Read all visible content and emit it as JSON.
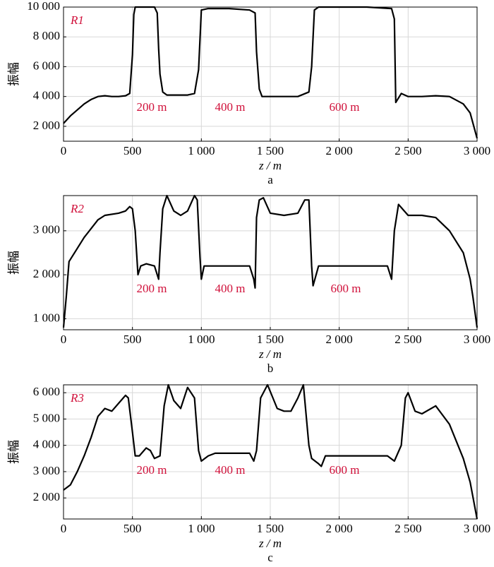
{
  "chart_data": [
    {
      "type": "line",
      "xlabel": "z / m",
      "ylabel": "振幅",
      "caption": "a",
      "annotations": [
        "200 m",
        "400 m",
        "600 m"
      ],
      "grid": true,
      "xlim": [
        0,
        3000
      ],
      "ylim": [
        1000,
        10000
      ],
      "xticks": [
        0,
        500,
        {
          "value": 1000,
          "label": "1 000"
        },
        {
          "value": 1500,
          "label": "1 500"
        },
        {
          "value": 2000,
          "label": "2 000"
        },
        {
          "value": 2500,
          "label": "2 500"
        },
        {
          "value": 3000,
          "label": "3 000"
        }
      ],
      "yticks": [
        {
          "value": 2000,
          "label": "2 000"
        },
        {
          "value": 4000,
          "label": "4 000"
        },
        {
          "value": 6000,
          "label": "6 000"
        },
        {
          "value": 8000,
          "label": "8 000"
        },
        {
          "value": 10000,
          "label": "10 000"
        }
      ],
      "x": [
        0,
        50,
        100,
        150,
        200,
        250,
        300,
        350,
        400,
        450,
        480,
        500,
        510,
        520,
        540,
        600,
        660,
        680,
        690,
        700,
        720,
        750,
        800,
        900,
        950,
        980,
        1000,
        1050,
        1200,
        1350,
        1390,
        1400,
        1420,
        1440,
        1500,
        1600,
        1700,
        1780,
        1800,
        1820,
        1850,
        2000,
        2200,
        2380,
        2400,
        2410,
        2450,
        2500,
        2600,
        2700,
        2800,
        2900,
        2950,
        3000
      ],
      "series": [
        {
          "name": "R1",
          "color": "#000000",
          "values": [
            2200,
            2700,
            3100,
            3500,
            3800,
            4000,
            4050,
            4000,
            4000,
            4050,
            4200,
            6800,
            9500,
            10000,
            10000,
            10000,
            10000,
            9600,
            7200,
            5500,
            4300,
            4100,
            4100,
            4100,
            4200,
            5800,
            9800,
            9900,
            9900,
            9800,
            9600,
            7000,
            4500,
            4000,
            4000,
            4000,
            4000,
            4300,
            6000,
            9800,
            10000,
            10000,
            10000,
            9900,
            9200,
            3600,
            4200,
            4000,
            4000,
            4050,
            4000,
            3500,
            2900,
            1200
          ]
        }
      ]
    },
    {
      "type": "line",
      "xlabel": "z / m",
      "ylabel": "振幅",
      "caption": "b",
      "annotations": [
        "200 m",
        "400 m",
        "600 m"
      ],
      "grid": true,
      "xlim": [
        0,
        3000
      ],
      "ylim": [
        750,
        3800
      ],
      "xticks": [
        0,
        500,
        {
          "value": 1000,
          "label": "1 000"
        },
        {
          "value": 1500,
          "label": "1 500"
        },
        {
          "value": 2000,
          "label": "2 000"
        },
        {
          "value": 2500,
          "label": "2 500"
        },
        {
          "value": 3000,
          "label": "3 000"
        }
      ],
      "yticks": [
        {
          "value": 1000,
          "label": "1 000"
        },
        {
          "value": 2000,
          "label": "2 000"
        },
        {
          "value": 3000,
          "label": "3 000"
        }
      ],
      "x": [
        0,
        20,
        40,
        100,
        150,
        200,
        250,
        300,
        400,
        450,
        480,
        500,
        520,
        540,
        560,
        600,
        660,
        690,
        700,
        720,
        750,
        800,
        850,
        900,
        950,
        970,
        990,
        1000,
        1020,
        1100,
        1200,
        1300,
        1350,
        1380,
        1390,
        1400,
        1420,
        1450,
        1500,
        1600,
        1700,
        1750,
        1780,
        1800,
        1810,
        1850,
        2000,
        2200,
        2350,
        2380,
        2400,
        2430,
        2500,
        2600,
        2700,
        2800,
        2900,
        2950,
        2970,
        3000
      ],
      "series": [
        {
          "name": "R2",
          "color": "#000000",
          "values": [
            800,
            1500,
            2300,
            2600,
            2850,
            3050,
            3250,
            3350,
            3400,
            3450,
            3550,
            3500,
            3000,
            2000,
            2200,
            2250,
            2200,
            1900,
            2500,
            3500,
            3800,
            3450,
            3350,
            3450,
            3800,
            3700,
            2400,
            1900,
            2200,
            2200,
            2200,
            2200,
            2200,
            1900,
            1700,
            3300,
            3700,
            3750,
            3400,
            3350,
            3400,
            3700,
            3700,
            2200,
            1750,
            2200,
            2200,
            2200,
            2200,
            1900,
            3000,
            3600,
            3350,
            3350,
            3300,
            3000,
            2500,
            1900,
            1500,
            800
          ]
        }
      ]
    },
    {
      "type": "line",
      "xlabel": "z / m",
      "ylabel": "振幅",
      "caption": "c",
      "annotations": [
        "200 m",
        "400 m",
        "600 m"
      ],
      "grid": true,
      "xlim": [
        0,
        3000
      ],
      "ylim": [
        1200,
        6300
      ],
      "xticks": [
        0,
        500,
        {
          "value": 1000,
          "label": "1 000"
        },
        {
          "value": 1500,
          "label": "1 500"
        },
        {
          "value": 2000,
          "label": "2 000"
        },
        {
          "value": 2500,
          "label": "2 500"
        },
        {
          "value": 3000,
          "label": "3 000"
        }
      ],
      "yticks": [
        {
          "value": 2000,
          "label": "2 000"
        },
        {
          "value": 3000,
          "label": "3 000"
        },
        {
          "value": 4000,
          "label": "4 000"
        },
        {
          "value": 5000,
          "label": "5 000"
        },
        {
          "value": 6000,
          "label": "6 000"
        }
      ],
      "x": [
        0,
        50,
        100,
        150,
        200,
        250,
        300,
        350,
        400,
        450,
        470,
        500,
        520,
        550,
        600,
        630,
        660,
        700,
        730,
        760,
        800,
        850,
        900,
        950,
        980,
        1000,
        1050,
        1100,
        1200,
        1350,
        1380,
        1400,
        1430,
        1480,
        1550,
        1600,
        1650,
        1700,
        1740,
        1780,
        1800,
        1850,
        1870,
        1900,
        2000,
        2200,
        2350,
        2400,
        2450,
        2480,
        2500,
        2550,
        2600,
        2700,
        2800,
        2900,
        2950,
        3000
      ],
      "series": [
        {
          "name": "R3",
          "color": "#000000",
          "values": [
            2300,
            2500,
            3000,
            3600,
            4300,
            5100,
            5400,
            5300,
            5600,
            5900,
            5800,
            4500,
            3600,
            3600,
            3900,
            3800,
            3500,
            3600,
            5500,
            6300,
            5700,
            5400,
            6200,
            5800,
            3800,
            3400,
            3600,
            3700,
            3700,
            3700,
            3400,
            3800,
            5800,
            6300,
            5400,
            5300,
            5300,
            5800,
            6300,
            4000,
            3500,
            3300,
            3200,
            3600,
            3600,
            3600,
            3600,
            3400,
            4000,
            5800,
            6000,
            5300,
            5200,
            5500,
            4800,
            3500,
            2600,
            1200
          ]
        }
      ]
    }
  ]
}
